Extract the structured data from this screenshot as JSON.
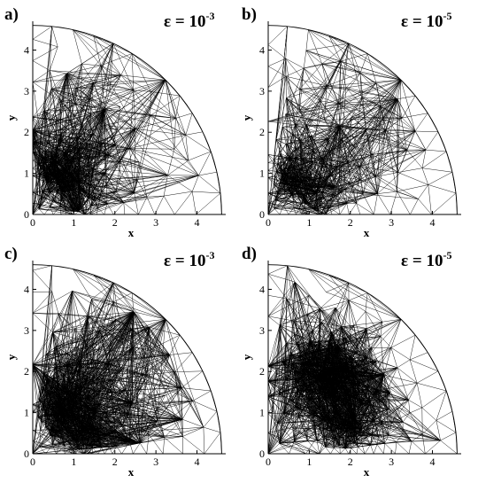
{
  "figure": {
    "x_axis_label": "x",
    "y_axis_label": "y",
    "x_ticks": [
      "0",
      "1",
      "2",
      "3",
      "4"
    ],
    "y_ticks": [
      "0",
      "1",
      "2",
      "3",
      "4"
    ],
    "x_range": [
      0,
      4.7
    ],
    "y_range": [
      0,
      4.7
    ],
    "domain_shape": "quarter-disc mesh of radius about 4.6",
    "panels": [
      {
        "label": "a)",
        "epsilon_base": "ε = 10",
        "epsilon_exp": "-3",
        "refinement_centers": [
          [
            0.55,
            0.95
          ],
          [
            1.0,
            0.0
          ]
        ]
      },
      {
        "label": "b)",
        "epsilon_base": "ε = 10",
        "epsilon_exp": "-5",
        "refinement_centers": [
          [
            0.5,
            0.9
          ],
          [
            1.0,
            0.0
          ]
        ]
      },
      {
        "label": "c)",
        "epsilon_base": "ε = 10",
        "epsilon_exp": "-3",
        "refinement_centers": [
          [
            0.6,
            1.0
          ],
          [
            1.2,
            0.1
          ]
        ]
      },
      {
        "label": "d)",
        "epsilon_base": "ε = 10",
        "epsilon_exp": "-5",
        "refinement_centers": [
          [
            1.4,
            1.8
          ],
          [
            2.0,
            0.6
          ]
        ]
      }
    ]
  }
}
